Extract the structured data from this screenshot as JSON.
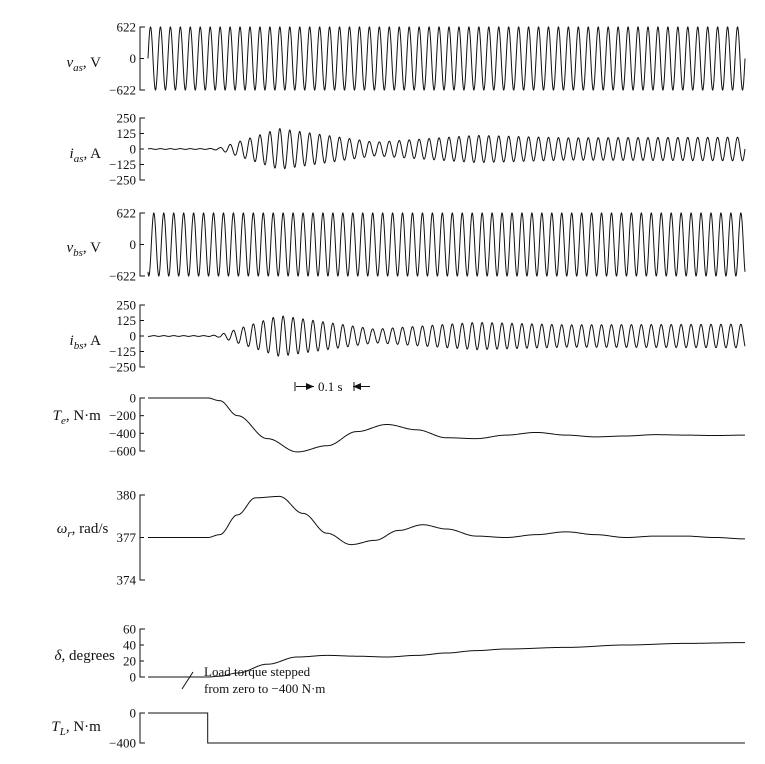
{
  "chart_data": [
    {
      "type": "line",
      "id": "vas",
      "ylabel_main": "v",
      "ylabel_sub": "as",
      "ylabel_unit": ", V",
      "yticks": [
        "622",
        "0",
        "−622"
      ],
      "ylim": [
        -622,
        622
      ],
      "signal": "Sinusoid at 60 Hz, constant amplitude 622 V over the full trace"
    },
    {
      "type": "line",
      "id": "ias",
      "ylabel_main": "i",
      "ylabel_sub": "as",
      "ylabel_unit": ", A",
      "yticks": [
        "250",
        "125",
        "0",
        "−125",
        "−250"
      ],
      "ylim": [
        -250,
        250
      ],
      "envelope": {
        "t": [
          0,
          0.1,
          0.12,
          0.22,
          0.38,
          0.55,
          0.7,
          1.0
        ],
        "amp": [
          3,
          3,
          10,
          165,
          55,
          110,
          90,
          95
        ]
      }
    },
    {
      "type": "line",
      "id": "vbs",
      "ylabel_main": "v",
      "ylabel_sub": "bs",
      "ylabel_unit": ", V",
      "yticks": [
        "622",
        "0",
        "−622"
      ],
      "ylim": [
        -622,
        622
      ],
      "signal": "Sinusoid at 60 Hz, constant amplitude 622 V over the full trace"
    },
    {
      "type": "line",
      "id": "ibs",
      "ylabel_main": "i",
      "ylabel_sub": "bs",
      "ylabel_unit": ", A",
      "yticks": [
        "250",
        "125",
        "0",
        "−125",
        "−250"
      ],
      "ylim": [
        -250,
        250
      ],
      "envelope": {
        "t": [
          0,
          0.1,
          0.12,
          0.22,
          0.38,
          0.55,
          0.7,
          1.0
        ],
        "amp": [
          3,
          3,
          10,
          165,
          55,
          110,
          90,
          95
        ]
      }
    },
    {
      "type": "line",
      "id": "Te",
      "ylabel_main": "T",
      "ylabel_sub": "e",
      "ylabel_unit": ", N·m",
      "yticks": [
        "0",
        "−200",
        "−400",
        "−600"
      ],
      "ylim": [
        -600,
        0
      ],
      "x": [
        0,
        0.1,
        0.12,
        0.15,
        0.2,
        0.25,
        0.3,
        0.35,
        0.4,
        0.45,
        0.5,
        0.55,
        0.6,
        0.65,
        0.7,
        0.75,
        0.8,
        0.85,
        0.9,
        0.95,
        1.0
      ],
      "y": [
        0,
        0,
        -30,
        -200,
        -460,
        -610,
        -540,
        -380,
        -300,
        -360,
        -450,
        -460,
        -420,
        -390,
        -420,
        -440,
        -430,
        -415,
        -420,
        -425,
        -420
      ]
    },
    {
      "type": "line",
      "id": "wr",
      "ylabel_main": "ω",
      "ylabel_sub": "r",
      "ylabel_unit": ", rad/s",
      "yticks": [
        "380",
        "377",
        "374"
      ],
      "ylim": [
        374,
        380
      ],
      "x": [
        0,
        0.1,
        0.12,
        0.15,
        0.18,
        0.22,
        0.26,
        0.3,
        0.34,
        0.38,
        0.42,
        0.46,
        0.5,
        0.55,
        0.6,
        0.65,
        0.7,
        0.75,
        0.8,
        0.85,
        0.9,
        0.95,
        1.0
      ],
      "y": [
        377,
        377,
        377.2,
        378.6,
        379.8,
        379.9,
        378.7,
        377.3,
        376.5,
        376.8,
        377.5,
        377.9,
        377.6,
        377.1,
        377,
        377.2,
        377.4,
        377.2,
        377,
        377.1,
        377.1,
        377,
        376.9
      ]
    },
    {
      "type": "line",
      "id": "delta",
      "ylabel_main": "δ",
      "ylabel_sub": "",
      "ylabel_unit": ", degrees",
      "yticks": [
        "60",
        "40",
        "20",
        "0"
      ],
      "ylim": [
        0,
        60
      ],
      "x": [
        0,
        0.1,
        0.12,
        0.15,
        0.2,
        0.25,
        0.3,
        0.35,
        0.4,
        0.45,
        0.5,
        0.55,
        0.6,
        0.7,
        0.8,
        0.9,
        1.0
      ],
      "y": [
        0,
        0,
        1,
        5,
        16,
        25,
        27,
        26,
        25,
        27,
        30,
        33,
        35,
        37,
        40,
        42,
        43
      ]
    },
    {
      "type": "line",
      "id": "TL",
      "ylabel_main": "T",
      "ylabel_sub": "L",
      "ylabel_unit": ", N·m",
      "yticks": [
        "0",
        "−400"
      ],
      "ylim": [
        -400,
        0
      ],
      "x": [
        0,
        0.1,
        0.1,
        1.0
      ],
      "y": [
        0,
        0,
        -400,
        -400
      ]
    }
  ],
  "annotations": {
    "timebar": "0.1 s",
    "load_step_line1": "Load torque stepped",
    "load_step_line2": "from zero to −400 N·m"
  }
}
